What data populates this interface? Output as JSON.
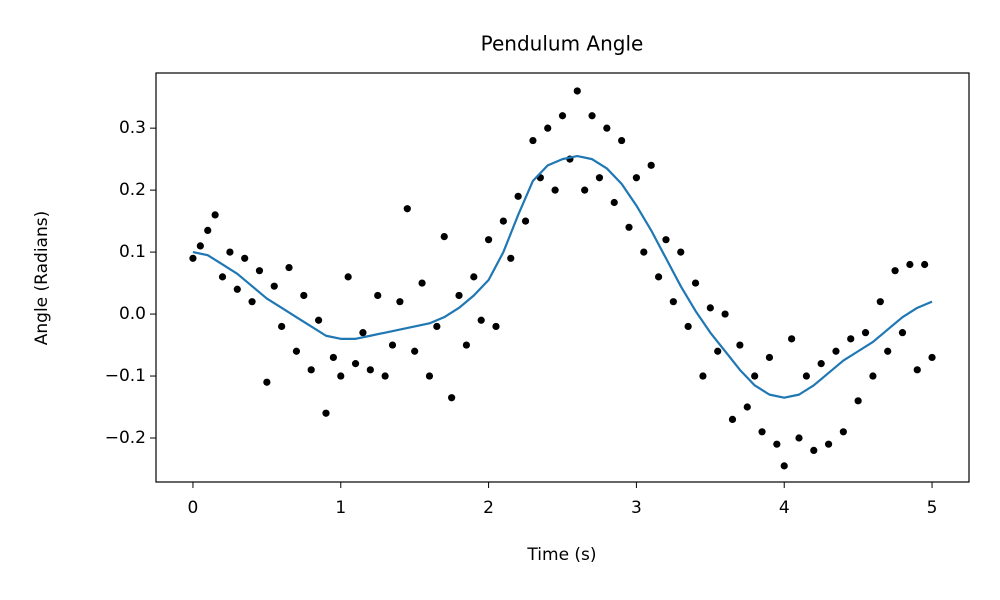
{
  "chart_data": {
    "type": "scatter",
    "title": "Pendulum Angle",
    "xlabel": "Time (s)",
    "ylabel": "Angle (Radians)",
    "xlim": [
      -0.25,
      5.25
    ],
    "ylim": [
      -0.271,
      0.389
    ],
    "xticks": [
      0,
      1,
      2,
      3,
      4,
      5
    ],
    "yticks": [
      {
        "value": -0.2,
        "label": "−0.2"
      },
      {
        "value": -0.1,
        "label": "−0.1"
      },
      {
        "value": 0,
        "label": "0.0"
      },
      0.1,
      0.2,
      0.3
    ],
    "grid": false,
    "series": [
      {
        "type": "scatter",
        "color": "#000000",
        "x": [
          0,
          0.05,
          0.1,
          0.15,
          0.2,
          0.25,
          0.3,
          0.35,
          0.4,
          0.45,
          0.5,
          0.55,
          0.6,
          0.65,
          0.7,
          0.75,
          0.8,
          0.85,
          0.9,
          0.95,
          1,
          1.05,
          1.1,
          1.15,
          1.2,
          1.25,
          1.3,
          1.35,
          1.4,
          1.45,
          1.5,
          1.55,
          1.6,
          1.65,
          1.7,
          1.75,
          1.8,
          1.85,
          1.9,
          1.95,
          2,
          2.05,
          2.1,
          2.15,
          2.2,
          2.25,
          2.3,
          2.35,
          2.4,
          2.45,
          2.5,
          2.55,
          2.6,
          2.65,
          2.7,
          2.75,
          2.8,
          2.85,
          2.9,
          2.95,
          3,
          3.05,
          3.1,
          3.15,
          3.2,
          3.25,
          3.3,
          3.35,
          3.4,
          3.45,
          3.5,
          3.55,
          3.6,
          3.65,
          3.7,
          3.75,
          3.8,
          3.85,
          3.9,
          3.95,
          4,
          4.05,
          4.1,
          4.15,
          4.2,
          4.25,
          4.3,
          4.35,
          4.4,
          4.45,
          4.5,
          4.55,
          4.6,
          4.65,
          4.7,
          4.75,
          4.8,
          4.85,
          4.9,
          4.95,
          5
        ],
        "values": [
          0.09,
          0.11,
          0.135,
          0.16,
          0.06,
          0.1,
          0.04,
          0.09,
          0.02,
          0.07,
          -0.11,
          0.045,
          -0.02,
          0.075,
          -0.06,
          0.03,
          -0.09,
          -0.01,
          -0.16,
          -0.07,
          -0.1,
          0.06,
          -0.08,
          -0.03,
          -0.09,
          0.03,
          -0.1,
          -0.05,
          0.02,
          0.17,
          -0.06,
          0.05,
          -0.1,
          -0.02,
          0.125,
          -0.135,
          0.03,
          -0.05,
          0.06,
          -0.01,
          0.12,
          -0.02,
          0.15,
          0.09,
          0.19,
          0.15,
          0.28,
          0.22,
          0.3,
          0.2,
          0.32,
          0.25,
          0.36,
          0.2,
          0.32,
          0.22,
          0.3,
          0.18,
          0.28,
          0.14,
          0.22,
          0.1,
          0.24,
          0.06,
          0.12,
          0.02,
          0.1,
          -0.02,
          0.05,
          -0.1,
          0.01,
          -0.06,
          0,
          -0.17,
          -0.05,
          -0.15,
          -0.1,
          -0.19,
          -0.07,
          -0.21,
          -0.245,
          -0.04,
          -0.2,
          -0.1,
          -0.22,
          -0.08,
          -0.21,
          -0.06,
          -0.19,
          -0.04,
          -0.14,
          -0.03,
          -0.1,
          0.02,
          -0.06,
          0.07,
          -0.03,
          0.08,
          -0.09,
          0.08,
          -0.07
        ]
      },
      {
        "type": "line",
        "color": "#1f77b4",
        "x": [
          0,
          0.1,
          0.2,
          0.3,
          0.4,
          0.5,
          0.6,
          0.7,
          0.8,
          0.9,
          1,
          1.1,
          1.2,
          1.3,
          1.4,
          1.5,
          1.6,
          1.7,
          1.8,
          1.9,
          2,
          2.1,
          2.2,
          2.3,
          2.4,
          2.5,
          2.6,
          2.7,
          2.8,
          2.9,
          3,
          3.1,
          3.2,
          3.3,
          3.4,
          3.5,
          3.6,
          3.7,
          3.8,
          3.9,
          4,
          4.1,
          4.2,
          4.3,
          4.4,
          4.5,
          4.6,
          4.7,
          4.8,
          4.9,
          5
        ],
        "values": [
          0.1,
          0.095,
          0.08,
          0.065,
          0.045,
          0.025,
          0.01,
          -0.005,
          -0.02,
          -0.035,
          -0.04,
          -0.04,
          -0.035,
          -0.03,
          -0.025,
          -0.02,
          -0.015,
          -0.005,
          0.01,
          0.03,
          0.055,
          0.1,
          0.16,
          0.215,
          0.24,
          0.25,
          0.255,
          0.25,
          0.235,
          0.21,
          0.175,
          0.135,
          0.09,
          0.045,
          0.005,
          -0.03,
          -0.06,
          -0.09,
          -0.115,
          -0.13,
          -0.135,
          -0.13,
          -0.115,
          -0.095,
          -0.075,
          -0.06,
          -0.045,
          -0.025,
          -0.005,
          0.01,
          0.02
        ]
      }
    ]
  }
}
